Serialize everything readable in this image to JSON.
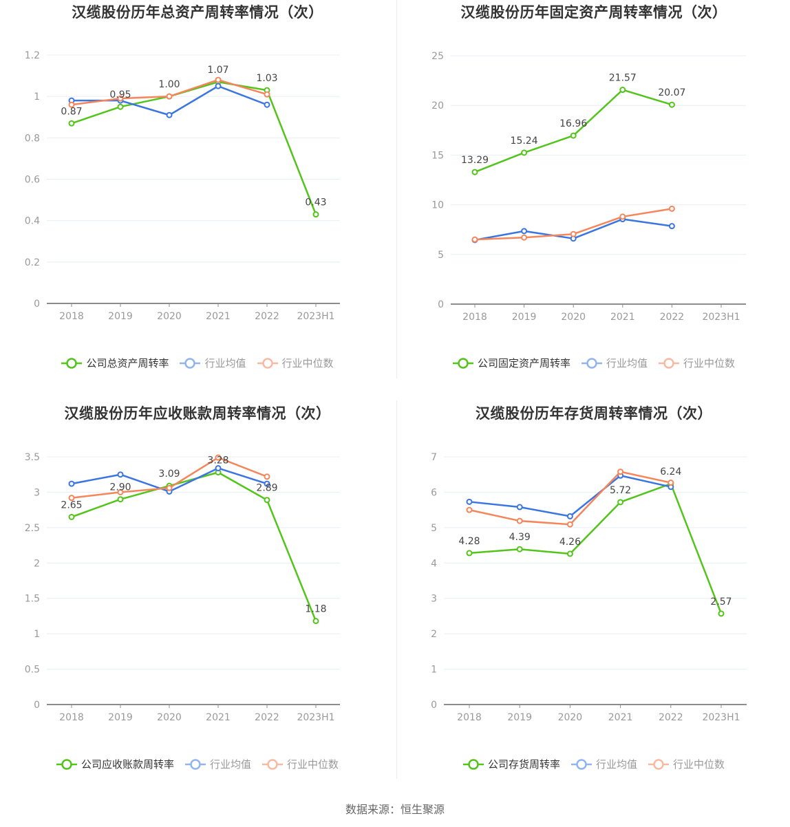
{
  "colors": {
    "company": "#52c41a",
    "average": "#3a75e0",
    "median": "#f5855a",
    "average_legend": "#8fb4f0",
    "median_legend": "#f9b9a0",
    "grid": "#e8edf5",
    "axis": "#8c8c8c"
  },
  "legend_common": {
    "average": "行业均值",
    "median": "行业中位数"
  },
  "source": "数据来源：恒生聚源",
  "chart_data": [
    {
      "type": "line",
      "title": "汉缆股份历年总资产周转率情况（次）",
      "categories": [
        "2018",
        "2019",
        "2020",
        "2021",
        "2022",
        "2023H1"
      ],
      "ylim": [
        0,
        1.2
      ],
      "yticks": [
        0,
        0.2,
        0.4,
        0.6,
        0.8,
        1,
        1.2
      ],
      "ytick_labels": [
        "0",
        "0.2",
        "0.4",
        "0.6",
        "0.8",
        "1",
        "1.2"
      ],
      "grid": true,
      "legend_position": "bottom",
      "series": [
        {
          "name": "公司总资产周转率",
          "key": "company",
          "values": [
            0.87,
            0.95,
            1.0,
            1.07,
            1.03,
            0.43
          ],
          "labels": [
            "0.87",
            "0.95",
            "1.00",
            "1.07",
            "1.03",
            "0.43"
          ]
        },
        {
          "name": "行业均值",
          "key": "average",
          "values": [
            0.98,
            0.98,
            0.91,
            1.05,
            0.96,
            null
          ]
        },
        {
          "name": "行业中位数",
          "key": "median",
          "values": [
            0.96,
            0.99,
            1.0,
            1.08,
            1.01,
            null
          ]
        }
      ]
    },
    {
      "type": "line",
      "title": "汉缆股份历年固定资产周转率情况（次）",
      "categories": [
        "2018",
        "2019",
        "2020",
        "2021",
        "2022",
        "2023H1"
      ],
      "ylim": [
        0,
        25
      ],
      "yticks": [
        0,
        5,
        10,
        15,
        20,
        25
      ],
      "ytick_labels": [
        "0",
        "5",
        "10",
        "15",
        "20",
        "25"
      ],
      "grid": true,
      "legend_position": "bottom",
      "series": [
        {
          "name": "公司固定资产周转率",
          "key": "company",
          "values": [
            13.29,
            15.24,
            16.96,
            21.57,
            20.07,
            null
          ],
          "labels": [
            "13.29",
            "15.24",
            "16.96",
            "21.57",
            "20.07",
            null
          ]
        },
        {
          "name": "行业均值",
          "key": "average",
          "values": [
            6.45,
            7.35,
            6.6,
            8.55,
            7.85,
            null
          ]
        },
        {
          "name": "行业中位数",
          "key": "median",
          "values": [
            6.5,
            6.7,
            7.05,
            8.8,
            9.6,
            null
          ]
        }
      ]
    },
    {
      "type": "line",
      "title": "汉缆股份历年应收账款周转率情况（次）",
      "categories": [
        "2018",
        "2019",
        "2020",
        "2021",
        "2022",
        "2023H1"
      ],
      "ylim": [
        0,
        3.5
      ],
      "yticks": [
        0,
        0.5,
        1,
        1.5,
        2,
        2.5,
        3,
        3.5
      ],
      "ytick_labels": [
        "0",
        "0.5",
        "1",
        "1.5",
        "2",
        "2.5",
        "3",
        "3.5"
      ],
      "grid": true,
      "legend_position": "bottom",
      "series": [
        {
          "name": "公司应收账款周转率",
          "key": "company",
          "values": [
            2.65,
            2.9,
            3.09,
            3.28,
            2.89,
            1.18
          ],
          "labels": [
            "2.65",
            "2.90",
            "3.09",
            "3.28",
            "2.89",
            "1.18"
          ]
        },
        {
          "name": "行业均值",
          "key": "average",
          "values": [
            3.12,
            3.25,
            3.01,
            3.34,
            3.12,
            null
          ]
        },
        {
          "name": "行业中位数",
          "key": "median",
          "values": [
            2.92,
            3.0,
            3.06,
            3.49,
            3.22,
            null
          ]
        }
      ]
    },
    {
      "type": "line",
      "title": "汉缆股份历年存货周转率情况（次）",
      "categories": [
        "2018",
        "2019",
        "2020",
        "2021",
        "2022",
        "2023H1"
      ],
      "ylim": [
        0,
        7
      ],
      "yticks": [
        0,
        1,
        2,
        3,
        4,
        5,
        6,
        7
      ],
      "ytick_labels": [
        "0",
        "1",
        "2",
        "3",
        "4",
        "5",
        "6",
        "7"
      ],
      "grid": true,
      "legend_position": "bottom",
      "series": [
        {
          "name": "公司存货周转率",
          "key": "company",
          "values": [
            4.28,
            4.39,
            4.26,
            5.72,
            6.24,
            2.57
          ],
          "labels": [
            "4.28",
            "4.39",
            "4.26",
            "5.72",
            "6.24",
            "2.57"
          ]
        },
        {
          "name": "行业均值",
          "key": "average",
          "values": [
            5.73,
            5.58,
            5.32,
            6.47,
            6.15,
            null
          ]
        },
        {
          "name": "行业中位数",
          "key": "median",
          "values": [
            5.5,
            5.19,
            5.09,
            6.58,
            6.27,
            null
          ]
        }
      ]
    }
  ]
}
